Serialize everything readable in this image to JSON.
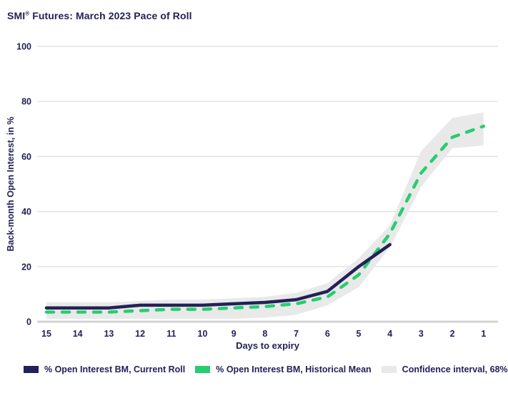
{
  "title": {
    "prefix": "SMI",
    "sup": "®",
    "rest": " Futures: March 2023 Pace of Roll"
  },
  "colors": {
    "navy": "#232158",
    "green": "#27cd70",
    "band": "#e9e9e9",
    "grid": "#dcdcdc",
    "zero_line": "#d3d3d3",
    "text": "#232158",
    "background": "#ffffff"
  },
  "chart_data": {
    "type": "line",
    "title": "SMI® Futures: March 2023 Pace of Roll",
    "xlabel": "Days to expiry",
    "ylabel": "Back-month Open Interest, in %",
    "categories": [
      15,
      14,
      13,
      12,
      11,
      10,
      9,
      8,
      7,
      6,
      5,
      4,
      3,
      2,
      1
    ],
    "x_direction": "descending days to expiry, left to right",
    "ylim": [
      0,
      100
    ],
    "y_ticks": [
      0,
      20,
      40,
      60,
      80,
      100
    ],
    "grid": true,
    "legend_position": "bottom",
    "series": [
      {
        "name": "% Open Interest BM, Current Roll",
        "type": "line",
        "style": "solid",
        "color": "#232158",
        "values": [
          5,
          5,
          5,
          6,
          6,
          6,
          6.5,
          7,
          8,
          11,
          20,
          28,
          null,
          null,
          null
        ]
      },
      {
        "name": "% Open Interest BM, Historical Mean",
        "type": "line",
        "style": "dashed",
        "color": "#27cd70",
        "values": [
          3.5,
          3.5,
          3.5,
          4,
          4.5,
          4.5,
          5,
          5.5,
          6.5,
          9,
          17,
          32,
          54,
          67,
          71
        ]
      },
      {
        "name": "Confidence interval, 68%",
        "type": "band",
        "color": "#e9e9e9",
        "upper": [
          7,
          7,
          7,
          7.5,
          8,
          8,
          8.5,
          9,
          10.5,
          14,
          23,
          35,
          62,
          74,
          76
        ],
        "lower": [
          1,
          1,
          1,
          1,
          1,
          1,
          1,
          1.5,
          2.5,
          6,
          12.5,
          27,
          49,
          63,
          64
        ]
      }
    ]
  }
}
